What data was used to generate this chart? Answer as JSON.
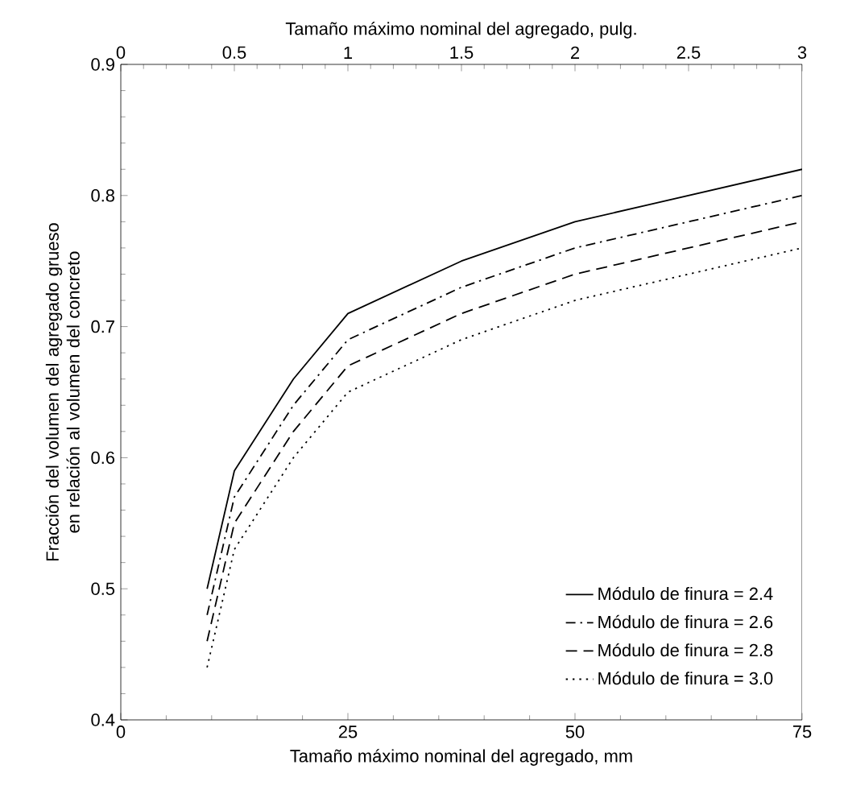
{
  "chart_data": {
    "type": "line",
    "xlabel": "Tamaño máximo nominal del agregado, mm",
    "x2label": "Tamaño máximo nominal del agregado, pulg.",
    "ylabel": "Fracción del volumen del agregado grueso en relación al volumen del concreto",
    "xlim": [
      0,
      75
    ],
    "xticks": [
      0,
      25,
      50,
      75
    ],
    "x2lim": [
      0,
      3
    ],
    "x2ticks": [
      0,
      0.5,
      1,
      1.5,
      2,
      2.5,
      3
    ],
    "ylim": [
      0.4,
      0.9
    ],
    "yticks": [
      0.4,
      0.5,
      0.6,
      0.7,
      0.8,
      0.9
    ],
    "x": [
      9.5,
      12.5,
      19,
      25,
      37.5,
      50,
      75
    ],
    "series": [
      {
        "name": "Módulo de finura = 2.4",
        "color": "#000000",
        "line_style": "solid",
        "values": [
          0.5,
          0.59,
          0.66,
          0.71,
          0.75,
          0.78,
          0.82
        ]
      },
      {
        "name": "Módulo de finura = 2.6",
        "color": "#000000",
        "line_style": "dashdot",
        "values": [
          0.48,
          0.57,
          0.64,
          0.69,
          0.73,
          0.76,
          0.8
        ]
      },
      {
        "name": "Módulo de finura = 2.8",
        "color": "#000000",
        "line_style": "dashed",
        "values": [
          0.46,
          0.55,
          0.62,
          0.67,
          0.71,
          0.74,
          0.78
        ]
      },
      {
        "name": "Módulo de finura = 3.0",
        "color": "#000000",
        "line_style": "dotted",
        "values": [
          0.44,
          0.53,
          0.6,
          0.65,
          0.69,
          0.72,
          0.76
        ]
      }
    ],
    "legend": "bottom right",
    "grid": false,
    "marker": "none"
  }
}
